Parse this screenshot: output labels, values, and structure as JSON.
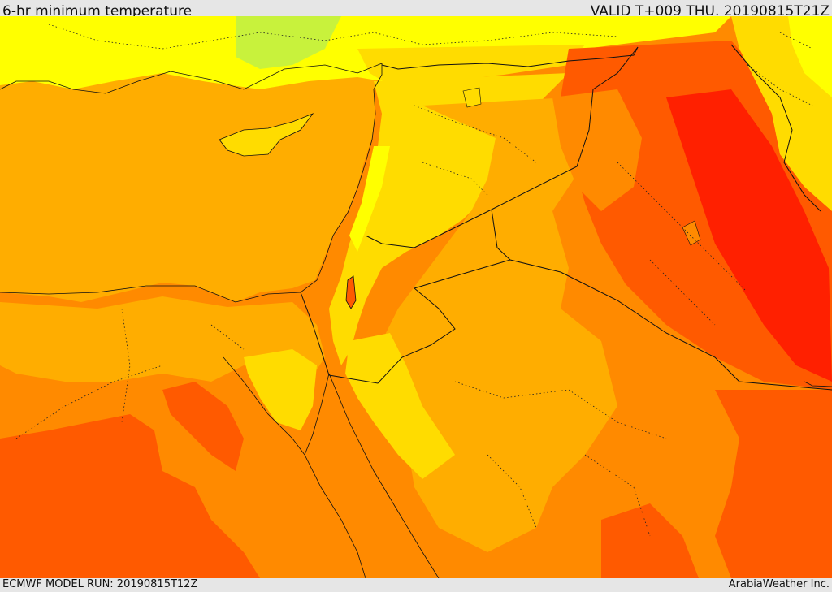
{
  "header": {
    "title": "6-hr minimum temperature",
    "valid": "VALID T+009 THU. 20190815T21Z"
  },
  "footer": {
    "model_run": "ECMWF MODEL RUN: 20190815T12Z",
    "credit": "ArabiaWeather Inc."
  },
  "map": {
    "colors": {
      "coolest": "#c8f23c",
      "cool": "#ffff00",
      "mild": "#ffdc00",
      "warm": "#ffad00",
      "hot": "#ff8a00",
      "hotter": "#ff5a00",
      "hottest": "#ff2000"
    }
  }
}
